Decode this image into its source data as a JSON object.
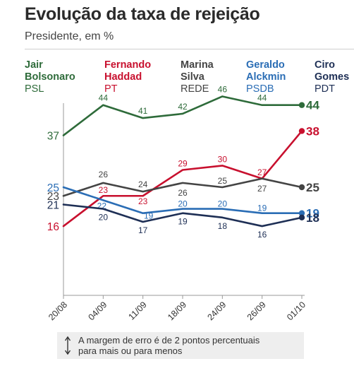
{
  "header": {
    "title": "Evolução da taxa de rejeição",
    "subtitle": "Presidente, em %"
  },
  "legend": [
    {
      "name": "Jair\nBolsonaro",
      "party": "PSL",
      "color": "#2e6b3a"
    },
    {
      "name": "Fernando\nHaddad",
      "party": "PT",
      "color": "#c8102e"
    },
    {
      "name": "Marina\nSilva",
      "party": "REDE",
      "color": "#444444"
    },
    {
      "name": "Geraldo\nAlckmin",
      "party": "PSDB",
      "color": "#2a6db5"
    },
    {
      "name": "Ciro\nGomes",
      "party": "PDT",
      "color": "#1e2f55"
    }
  ],
  "chart_data": {
    "type": "line",
    "categories": [
      "20/08",
      "04/09",
      "11/09",
      "18/09",
      "24/09",
      "26/09",
      "01/10"
    ],
    "series": [
      {
        "name": "Jair Bolsonaro",
        "party": "PSL",
        "color": "#2e6b3a",
        "values": [
          37,
          44,
          41,
          42,
          46,
          44,
          44
        ]
      },
      {
        "name": "Fernando Haddad",
        "party": "PT",
        "color": "#c8102e",
        "values": [
          16,
          23,
          23,
          29,
          30,
          27,
          38
        ]
      },
      {
        "name": "Marina Silva",
        "party": "REDE",
        "color": "#444444",
        "values": [
          23,
          26,
          24,
          26,
          25,
          27,
          25
        ]
      },
      {
        "name": "Geraldo Alckmin",
        "party": "PSDB",
        "color": "#2a6db5",
        "values": [
          25,
          22,
          19,
          20,
          20,
          19,
          19
        ]
      },
      {
        "name": "Ciro Gomes",
        "party": "PDT",
        "color": "#1e2f55",
        "values": [
          21,
          20,
          17,
          19,
          18,
          16,
          18
        ]
      }
    ],
    "ylim": [
      0,
      50
    ],
    "grid": false
  },
  "note": {
    "text": "A margem de erro é de 2 pontos percentuais\npara mais ou para menos"
  }
}
